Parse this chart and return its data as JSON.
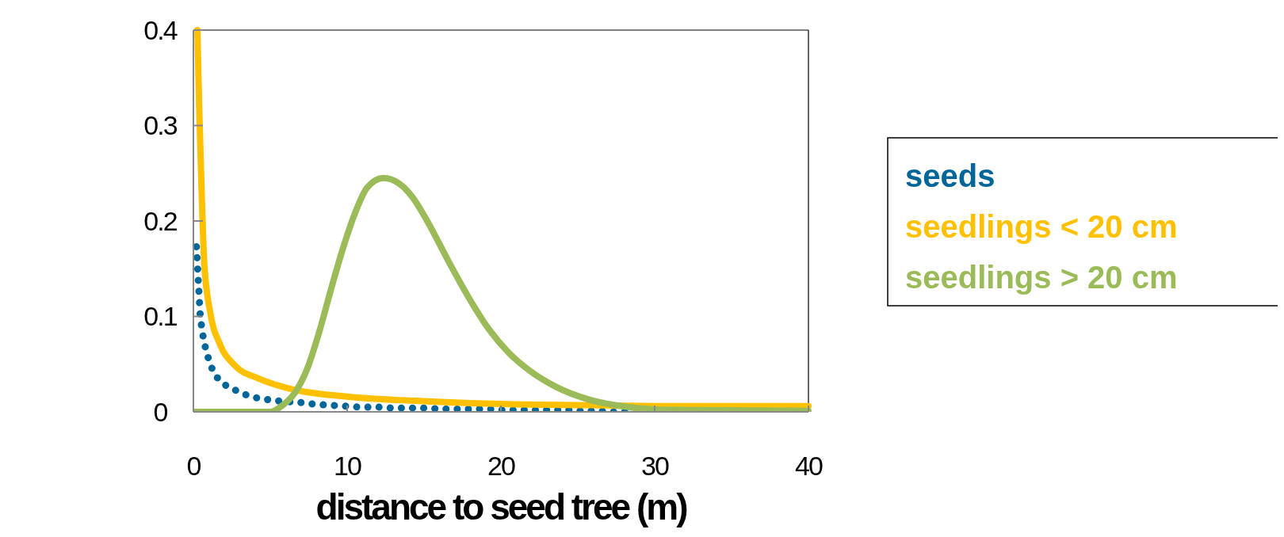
{
  "chart_data": {
    "type": "line",
    "xlabel": "distance to seed tree (m)",
    "xlim": [
      0,
      40
    ],
    "xticks": [
      0,
      10,
      20,
      30,
      40
    ],
    "ylim": [
      0,
      0.4
    ],
    "yticks": [
      0,
      0.1,
      0.2,
      0.3,
      0.4
    ],
    "legend": "right",
    "grid": false,
    "series": [
      {
        "name": "seeds",
        "color": "#00669a",
        "line_style": "dotted",
        "x": [
          0.2,
          0.26,
          0.31,
          0.37,
          0.42,
          0.52,
          0.68,
          0.92,
          1.28,
          1.94,
          2.83,
          3.77,
          4.77,
          5.81,
          6.86,
          7.86,
          8.88,
          9.9,
          10.9,
          12,
          13,
          14,
          15.1,
          16.1,
          17.1,
          18.1,
          19.1,
          20.2,
          21.2,
          22.2,
          23.2,
          24.3,
          25.3,
          26.3,
          27.3,
          28.3
        ],
        "values": [
          0.173,
          0.156,
          0.14,
          0.123,
          0.107,
          0.091,
          0.075,
          0.059,
          0.043,
          0.03,
          0.022,
          0.016,
          0.013,
          0.011,
          0.01,
          0.008,
          0.007,
          0.006,
          0.005,
          0.005,
          0.004,
          0.004,
          0.004,
          0.003,
          0.003,
          0.003,
          0.003,
          0.002,
          0.002,
          0.002,
          0.002,
          0.002,
          0.001,
          0.001,
          0,
          0
        ]
      },
      {
        "name": "seedlings < 20 cm",
        "color": "#ffc000",
        "line_style": "solid",
        "x": [
          0.26,
          0.37,
          0.52,
          0.71,
          1.1,
          1.75,
          2.67,
          4.24,
          6.34,
          10,
          15.2,
          20.5,
          25.7,
          31,
          40
        ],
        "values": [
          0.4,
          0.323,
          0.239,
          0.155,
          0.104,
          0.07,
          0.049,
          0.035,
          0.024,
          0.016,
          0.011,
          0.008,
          0.007,
          0.006,
          0.006
        ]
      },
      {
        "name": "seedlings > 20 cm",
        "color": "#9bbb59",
        "line_style": "solid",
        "x": [
          0,
          5.03,
          5.81,
          6.6,
          7.4,
          8.17,
          8.96,
          9.74,
          10.53,
          11.3,
          12.36,
          13.4,
          14.2,
          15.24,
          16.55,
          17.86,
          19.2,
          20.5,
          22.05,
          23.6,
          25.7,
          28.3,
          31,
          40
        ],
        "values": [
          0,
          0,
          0.007,
          0.02,
          0.045,
          0.083,
          0.129,
          0.172,
          0.209,
          0.235,
          0.245,
          0.239,
          0.226,
          0.199,
          0.159,
          0.121,
          0.087,
          0.062,
          0.041,
          0.026,
          0.013,
          0.005,
          0.002,
          0.001
        ]
      }
    ]
  }
}
